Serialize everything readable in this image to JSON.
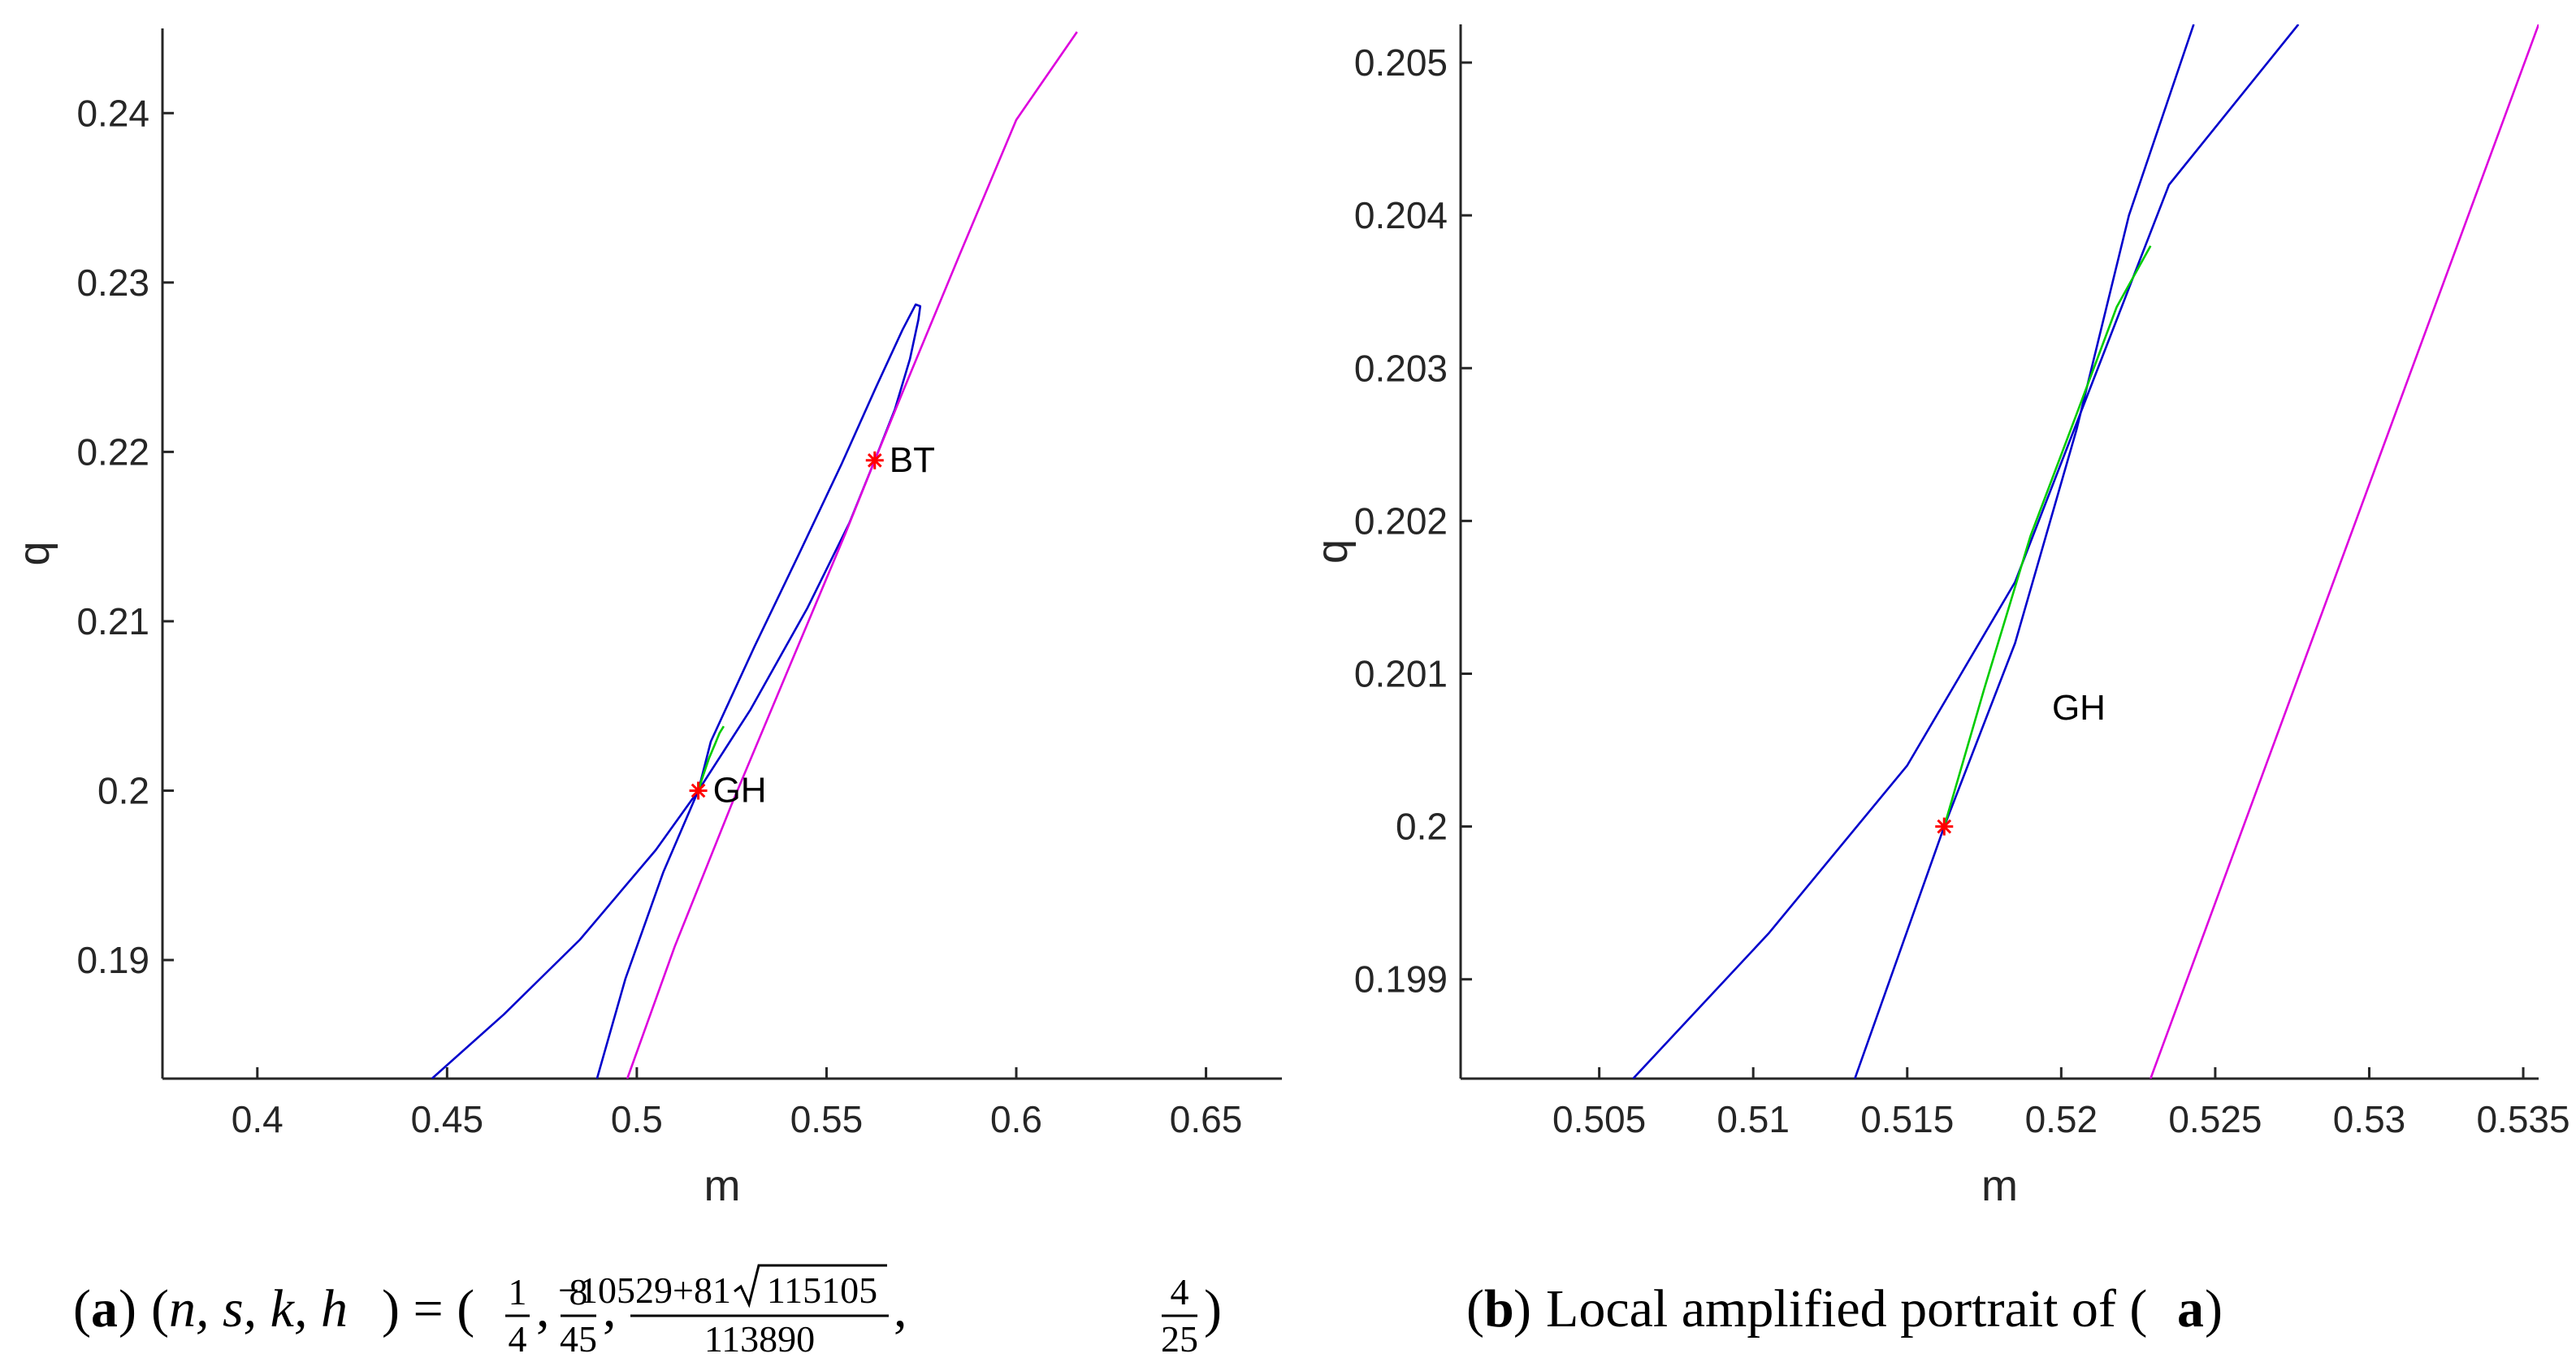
{
  "chart_data": [
    {
      "type": "line",
      "panel": "a",
      "xlabel": "m",
      "ylabel": "q",
      "xlim": [
        0.375,
        0.67
      ],
      "ylim": [
        0.183,
        0.245
      ],
      "xticks": [
        0.4,
        0.45,
        0.5,
        0.55,
        0.6,
        0.65
      ],
      "yticks": [
        0.19,
        0.2,
        0.21,
        0.22,
        0.23,
        0.24
      ],
      "xtick_labels": [
        "0.4",
        "0.45",
        "0.5",
        "0.55",
        "0.6",
        "0.65"
      ],
      "ytick_labels": [
        "0.19",
        "0.2",
        "0.21",
        "0.22",
        "0.23",
        "0.24"
      ],
      "grid": false,
      "series": [
        {
          "color": "#0000cc",
          "x": [
            0.446,
            0.465,
            0.485,
            0.505,
            0.5162,
            0.53,
            0.545,
            0.556,
            0.5627,
            0.568,
            0.572,
            0.5742,
            0.5747,
            0.5735,
            0.57,
            0.563,
            0.554,
            0.543,
            0.531,
            0.5195,
            0.5162,
            0.507,
            0.497,
            0.4895
          ],
          "y": [
            0.183,
            0.1868,
            0.1912,
            0.1965,
            0.2,
            0.2048,
            0.2108,
            0.2158,
            0.2195,
            0.2225,
            0.2255,
            0.2278,
            0.2286,
            0.2287,
            0.2272,
            0.2238,
            0.2193,
            0.2141,
            0.2085,
            0.2029,
            0.2,
            0.1952,
            0.1889,
            0.183
          ]
        },
        {
          "color": "#dd00dd",
          "x": [
            0.4975,
            0.51,
            0.525,
            0.54,
            0.555,
            0.5627,
            0.57,
            0.585,
            0.6,
            0.616
          ],
          "y": [
            0.183,
            0.1908,
            0.1992,
            0.2072,
            0.2152,
            0.2195,
            0.2235,
            0.2316,
            0.2396,
            0.2448
          ]
        },
        {
          "color": "#00cc00",
          "x": [
            0.5162,
            0.5175,
            0.519,
            0.5205,
            0.5218,
            0.5229
          ],
          "y": [
            0.2,
            0.2009,
            0.2019,
            0.2027,
            0.2034,
            0.2038
          ]
        }
      ],
      "points": [
        {
          "label": "GH",
          "x": 0.5162,
          "y": 0.2,
          "color": "#ff0000"
        },
        {
          "label": "BT",
          "x": 0.5627,
          "y": 0.2195,
          "color": "#ff0000"
        }
      ]
    },
    {
      "type": "line",
      "panel": "b",
      "xlabel": "m",
      "ylabel": "q",
      "xlim": [
        0.5005,
        0.5355
      ],
      "ylim": [
        0.19835,
        0.20525
      ],
      "xticks": [
        0.505,
        0.51,
        0.515,
        0.52,
        0.525,
        0.53,
        0.535
      ],
      "yticks": [
        0.199,
        0.2,
        0.201,
        0.202,
        0.203,
        0.204,
        0.205
      ],
      "xtick_labels": [
        "0.505",
        "0.51",
        "0.515",
        "0.52",
        "0.525",
        "0.53",
        "0.535"
      ],
      "ytick_labels": [
        "0.199",
        "0.2",
        "0.201",
        "0.202",
        "0.203",
        "0.204",
        "0.205"
      ],
      "grid": false,
      "series": [
        {
          "color": "#0000cc",
          "x": [
            0.5061,
            0.5105,
            0.515,
            0.5185,
            0.521,
            0.5235,
            0.5277
          ],
          "y": [
            0.19835,
            0.1993,
            0.2004,
            0.2016,
            0.2029,
            0.2042,
            0.20525
          ]
        },
        {
          "color": "#0000cc",
          "x": [
            0.5133,
            0.5162,
            0.5185,
            0.5205,
            0.5222,
            0.5243
          ],
          "y": [
            0.19835,
            0.2,
            0.2012,
            0.2026,
            0.204,
            0.20525
          ]
        },
        {
          "color": "#dd00dd",
          "x": [
            0.5229,
            0.5355
          ],
          "y": [
            0.19835,
            0.20525
          ]
        },
        {
          "color": "#00cc00",
          "x": [
            0.5162,
            0.5175,
            0.519,
            0.5205,
            0.5218,
            0.5229
          ],
          "y": [
            0.2,
            0.2009,
            0.2019,
            0.2027,
            0.2034,
            0.2038
          ]
        }
      ],
      "points": [
        {
          "label": "",
          "x": 0.5162,
          "y": 0.2,
          "color": "#ff0000"
        }
      ],
      "annotations": [
        {
          "text": "GH",
          "x": 0.5197,
          "y": 0.2007
        }
      ]
    }
  ],
  "captions": {
    "a": {
      "tag": "a",
      "vars": "n, s, k, h",
      "frac1_num": "1",
      "frac1_den": "4",
      "frac2_num": "8",
      "frac2_den": "45",
      "frac3_num_a": "−10529+81",
      "frac3_num_b": "115105",
      "frac3_den": "113890",
      "frac4_num": "4",
      "frac4_den": "25"
    },
    "b": {
      "tag": "b",
      "text": "Local amplified portrait of (",
      "ref": "a",
      "close": ")"
    }
  }
}
